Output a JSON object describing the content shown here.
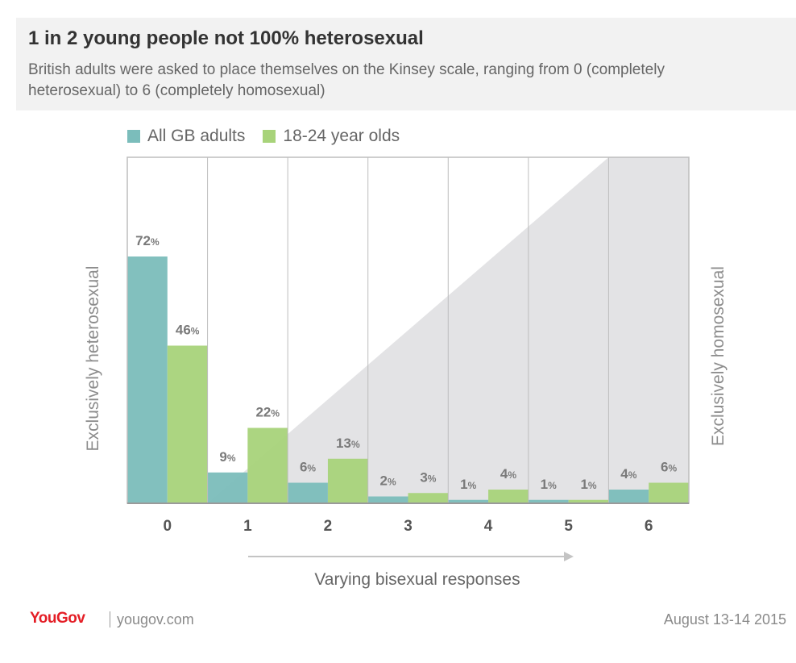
{
  "header": {
    "title": "1 in 2 young people not 100% heterosexual",
    "subtitle": "British adults were asked to place themselves on the Kinsey scale, ranging from 0 (completely heterosexual) to 6 (completely homosexual)"
  },
  "legend": [
    {
      "label": "All GB adults",
      "color": "#7bbdbb"
    },
    {
      "label": "18-24 year olds",
      "color": "#a8d37a"
    }
  ],
  "chart_data": {
    "type": "bar",
    "title": "1 in 2 young people not 100% heterosexual",
    "categories": [
      "0",
      "1",
      "2",
      "3",
      "4",
      "5",
      "6"
    ],
    "series": [
      {
        "name": "All GB adults",
        "values": [
          72,
          9,
          6,
          2,
          1,
          1,
          4
        ],
        "color": "#7bbdbb"
      },
      {
        "name": "18-24 year olds",
        "values": [
          46,
          22,
          13,
          3,
          4,
          1,
          6
        ],
        "color": "#a8d37a"
      }
    ],
    "value_suffix": "%",
    "ylim": [
      0,
      100
    ],
    "ylabel_left": "Exclusively heterosexual",
    "ylabel_right": "Exclusively homosexual",
    "xlabel": "Varying bisexual responses",
    "grid": true
  },
  "footer": {
    "brand": "YouGov",
    "url": "yougov.com",
    "date": "August 13-14 2015"
  }
}
